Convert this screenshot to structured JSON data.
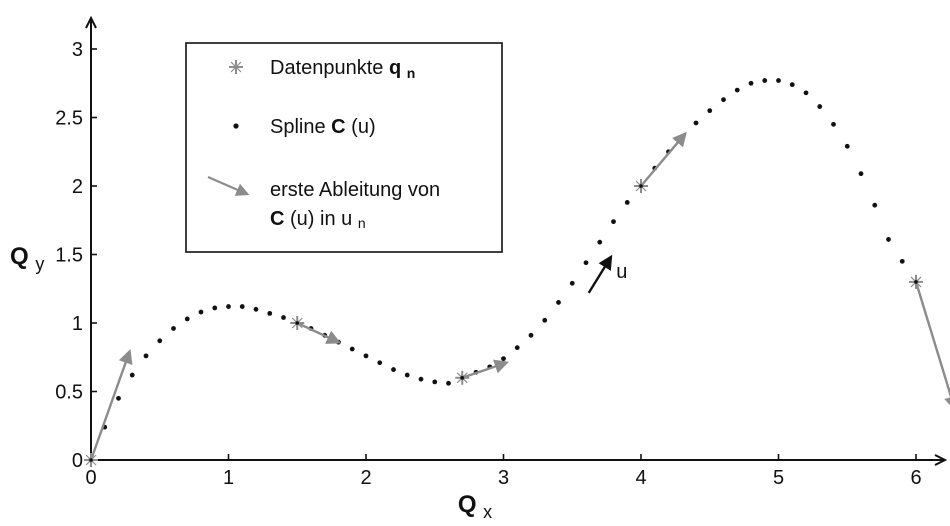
{
  "chart_data": {
    "type": "scatter",
    "title": "",
    "xlabel": "Q",
    "xlabel_sub": "x",
    "ylabel": "Q",
    "ylabel_sub": "y",
    "xlim": [
      0,
      6.3
    ],
    "ylim": [
      0,
      3.2
    ],
    "grid": false,
    "legend_position": "top-left",
    "x_ticks": [
      "0",
      "1",
      "2",
      "3",
      "4",
      "5",
      "6"
    ],
    "y_ticks": [
      "0",
      "0.5",
      "1",
      "1.5",
      "2",
      "2.5",
      "3"
    ],
    "colors": {
      "axis": "#111111",
      "spline_dot": "#111111",
      "data_point": "#8c8c8c",
      "derivative_arrow": "#8c8c8c",
      "direction_arrow": "#111111"
    },
    "legend": {
      "entries": [
        {
          "kind": "data_points",
          "icon": "plus-marker-icon",
          "text": "Datenpunkte ",
          "bold": "q",
          "sub": "n"
        },
        {
          "kind": "spline",
          "icon": "dot-marker-icon",
          "text": "Spline ",
          "bold": "C",
          "after": "(u)"
        },
        {
          "kind": "derivative",
          "icon": "derivative-arrow-icon",
          "text_line1": "erste Ableitung von",
          "bold": "C",
          "after": "(u) in u",
          "sub": "n"
        }
      ]
    },
    "annotation": {
      "text": "u",
      "arrow_from": [
        3.62,
        1.22
      ],
      "arrow_to": [
        3.78,
        1.48
      ],
      "text_at": [
        3.82,
        1.33
      ]
    },
    "series": [
      {
        "name": "Datenpunkte qn",
        "kind": "data_points",
        "points": [
          [
            0,
            0
          ],
          [
            1.5,
            1.0
          ],
          [
            2.7,
            0.6
          ],
          [
            4.0,
            2.0
          ],
          [
            6.0,
            1.3
          ]
        ]
      },
      {
        "name": "Spline C(u)",
        "kind": "spline",
        "points": [
          [
            0.0,
            0.0
          ],
          [
            0.1,
            0.24
          ],
          [
            0.2,
            0.45
          ],
          [
            0.3,
            0.62
          ],
          [
            0.4,
            0.76
          ],
          [
            0.5,
            0.87
          ],
          [
            0.6,
            0.96
          ],
          [
            0.7,
            1.03
          ],
          [
            0.8,
            1.08
          ],
          [
            0.9,
            1.11
          ],
          [
            1.0,
            1.12
          ],
          [
            1.1,
            1.12
          ],
          [
            1.2,
            1.1
          ],
          [
            1.3,
            1.07
          ],
          [
            1.4,
            1.04
          ],
          [
            1.5,
            1.0
          ],
          [
            1.6,
            0.96
          ],
          [
            1.7,
            0.91
          ],
          [
            1.8,
            0.86
          ],
          [
            1.9,
            0.81
          ],
          [
            2.0,
            0.76
          ],
          [
            2.1,
            0.71
          ],
          [
            2.2,
            0.66
          ],
          [
            2.3,
            0.62
          ],
          [
            2.4,
            0.59
          ],
          [
            2.5,
            0.57
          ],
          [
            2.6,
            0.56
          ],
          [
            2.7,
            0.6
          ],
          [
            2.8,
            0.64
          ],
          [
            2.9,
            0.68
          ],
          [
            3.0,
            0.74
          ],
          [
            3.1,
            0.82
          ],
          [
            3.2,
            0.91
          ],
          [
            3.3,
            1.02
          ],
          [
            3.4,
            1.15
          ],
          [
            3.5,
            1.29
          ],
          [
            3.6,
            1.44
          ],
          [
            3.7,
            1.59
          ],
          [
            3.8,
            1.74
          ],
          [
            3.9,
            1.88
          ],
          [
            4.0,
            2.0
          ],
          [
            4.1,
            2.13
          ],
          [
            4.2,
            2.25
          ],
          [
            4.3,
            2.36
          ],
          [
            4.4,
            2.46
          ],
          [
            4.5,
            2.55
          ],
          [
            4.6,
            2.63
          ],
          [
            4.7,
            2.7
          ],
          [
            4.8,
            2.75
          ],
          [
            4.9,
            2.77
          ],
          [
            5.0,
            2.77
          ],
          [
            5.1,
            2.74
          ],
          [
            5.2,
            2.68
          ],
          [
            5.3,
            2.58
          ],
          [
            5.4,
            2.45
          ],
          [
            5.5,
            2.29
          ],
          [
            5.6,
            2.09
          ],
          [
            5.7,
            1.86
          ],
          [
            5.8,
            1.61
          ],
          [
            5.9,
            1.45
          ],
          [
            6.0,
            1.3
          ]
        ]
      },
      {
        "name": "erste Ableitung von C(u) in un",
        "kind": "derivative",
        "arrows": [
          {
            "from": [
              0,
              0
            ],
            "to": [
              0.28,
              0.79
            ]
          },
          {
            "from": [
              1.5,
              1.0
            ],
            "to": [
              1.8,
              0.86
            ]
          },
          {
            "from": [
              2.7,
              0.6
            ],
            "to": [
              3.02,
              0.71
            ]
          },
          {
            "from": [
              4.0,
              2.0
            ],
            "to": [
              4.32,
              2.38
            ]
          },
          {
            "from": [
              6.0,
              1.3
            ],
            "to": [
              6.28,
              0.38
            ]
          }
        ]
      }
    ]
  }
}
